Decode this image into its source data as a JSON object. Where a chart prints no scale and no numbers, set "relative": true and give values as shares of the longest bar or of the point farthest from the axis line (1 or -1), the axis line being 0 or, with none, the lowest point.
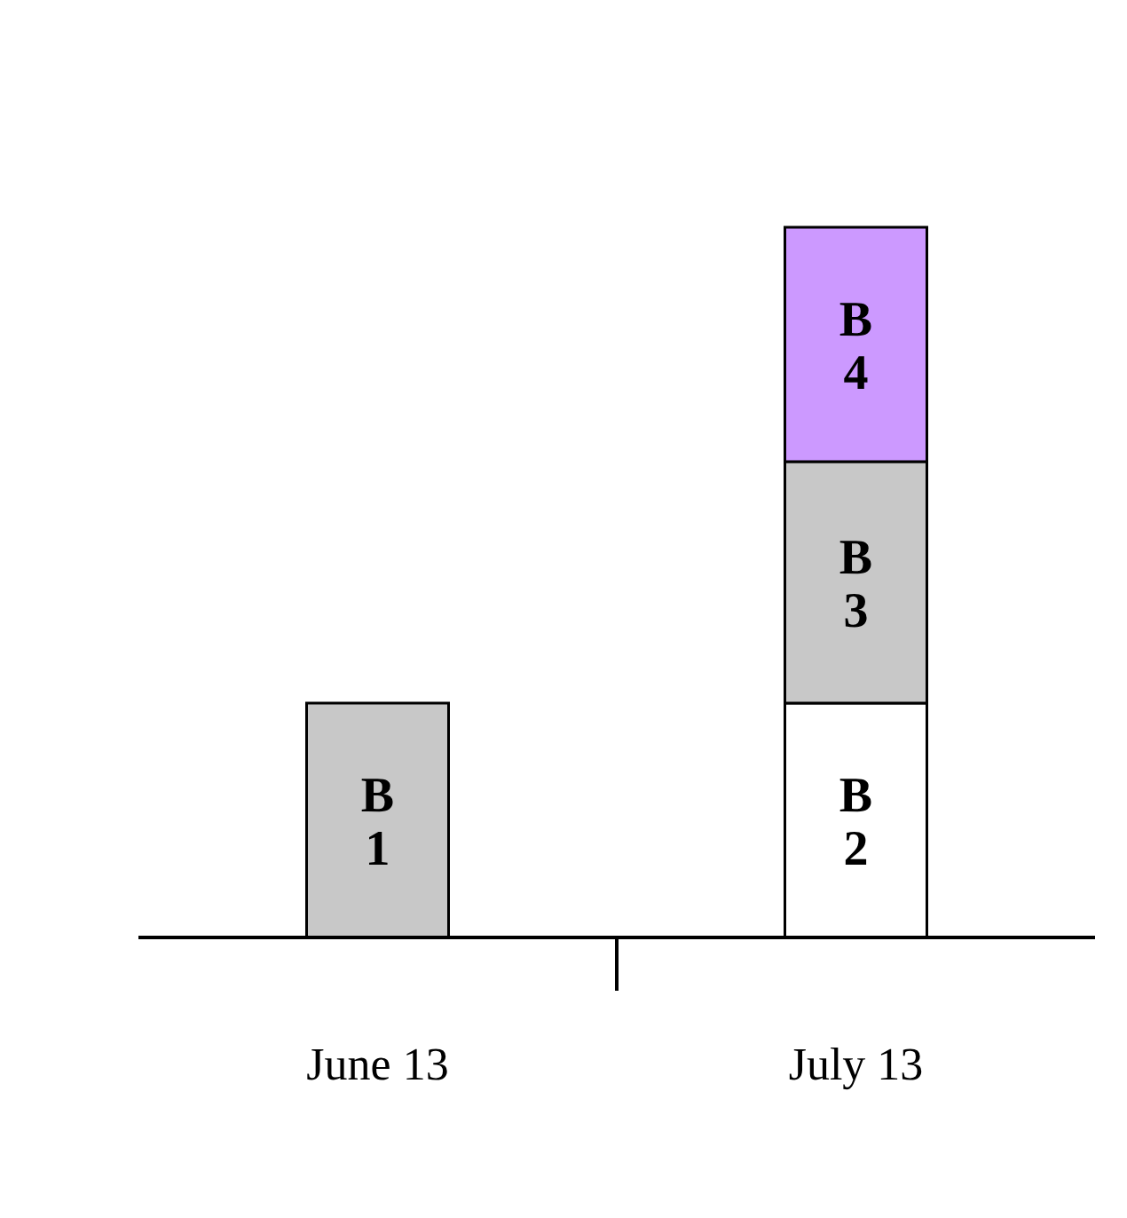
{
  "chart_data": {
    "type": "bar",
    "stacked": true,
    "relative": true,
    "categories": [
      "June 13",
      "July 13"
    ],
    "series": [
      {
        "name": "B 1",
        "color": "#c8c8c8",
        "values": [
          0.33,
          null
        ]
      },
      {
        "name": "B 2",
        "color": "#ffffff",
        "values": [
          null,
          0.33
        ]
      },
      {
        "name": "B 3",
        "color": "#c8c8c8",
        "values": [
          null,
          0.34
        ]
      },
      {
        "name": "B 4",
        "color": "#cc99ff",
        "values": [
          null,
          0.33
        ]
      }
    ]
  }
}
